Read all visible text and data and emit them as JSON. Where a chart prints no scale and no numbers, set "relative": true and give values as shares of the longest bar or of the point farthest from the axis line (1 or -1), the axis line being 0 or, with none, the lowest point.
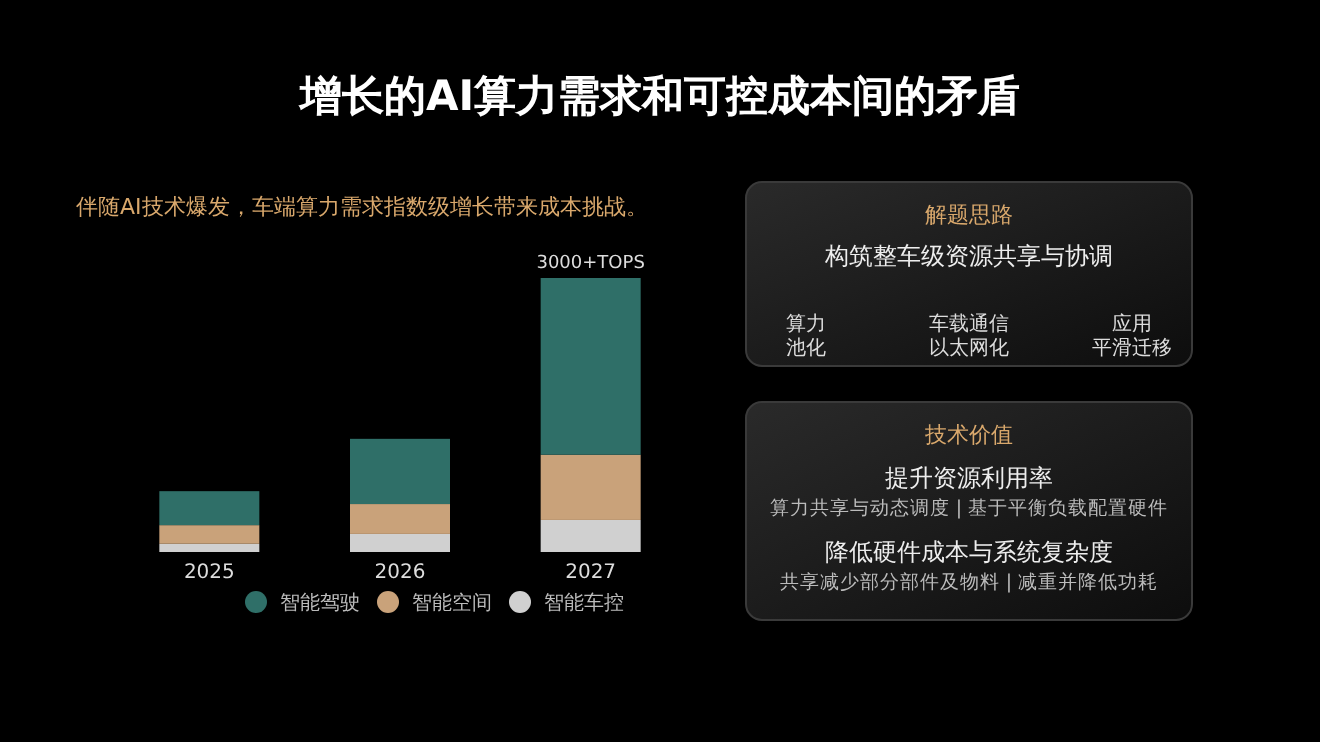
{
  "chart_data": [
    {
      "type": "bar",
      "title": "增长的AI算力需求和可控成本间的矛盾",
      "subtitle": "伴随AI技术爆发，车端算力需求指数级增长带来成本挑战。",
      "categories": [
        "2025",
        "2026",
        "2027"
      ],
      "stacked": true,
      "relative": true,
      "legend": "bottom",
      "series": [
        {
          "name": "智能车控",
          "color": "#d0d0d0",
          "values": [
            0.03,
            0.066,
            0.117
          ]
        },
        {
          "name": "智能空间",
          "color": "#c9a27a",
          "values": [
            0.068,
            0.109,
            0.238
          ]
        },
        {
          "name": "智能驾驶",
          "color": "#2f6f68",
          "values": [
            0.124,
            0.238,
            0.645
          ]
        }
      ],
      "annotations": [
        {
          "text": "3000+TOPS",
          "x": "2027",
          "y": 1
        }
      ]
    },
    {
      "type": "other",
      "title": "解题思路",
      "subtitle": "构筑整车级资源共享与协调",
      "annotations": [
        "算力",
        "池化",
        "车载通信",
        "以太网化",
        "应用",
        "平滑迁移"
      ]
    },
    {
      "type": "other",
      "title": "技术价值",
      "annotations": [
        "提升资源利用率",
        "算力共享与动态调度 | 基于平衡负载配置硬件",
        "降低硬件成本与系统复杂度",
        "共享减少部分部件及物料 | 减重并降低功耗"
      ]
    }
  ]
}
